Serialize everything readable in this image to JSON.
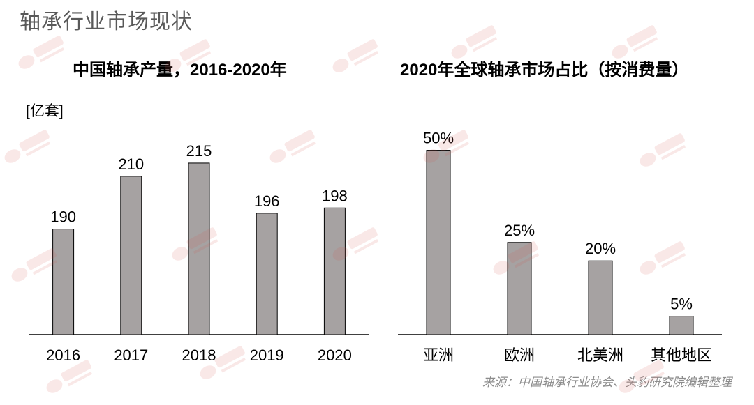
{
  "page": {
    "title": "轴承行业市场现状",
    "source": "来源：中国轴承行业协会、头豹研究院编辑整理"
  },
  "colors": {
    "bar": "#a6a2a2",
    "bar_stroke": "#000000",
    "axis": "#000000",
    "watermark": "#d9534f"
  },
  "watermark_icon": "toubao-logo-watermark",
  "chart_data": [
    {
      "type": "bar",
      "title": "中国轴承产量，2016-2020年",
      "ylabel": "[亿套]",
      "categories": [
        "2016",
        "2017",
        "2018",
        "2019",
        "2020"
      ],
      "values": [
        190,
        210,
        215,
        196,
        198
      ],
      "value_labels": [
        "190",
        "210",
        "215",
        "196",
        "198"
      ],
      "ylim": [
        150,
        220
      ],
      "grid": false
    },
    {
      "type": "bar",
      "title": "2020年全球轴承市场占比（按消费量）",
      "categories": [
        "亚洲",
        "欧洲",
        "北美洲",
        "其他地区"
      ],
      "values": [
        50,
        25,
        20,
        5
      ],
      "value_labels": [
        "50%",
        "25%",
        "20%",
        "5%"
      ],
      "ylim": [
        0,
        52
      ],
      "grid": false
    }
  ]
}
